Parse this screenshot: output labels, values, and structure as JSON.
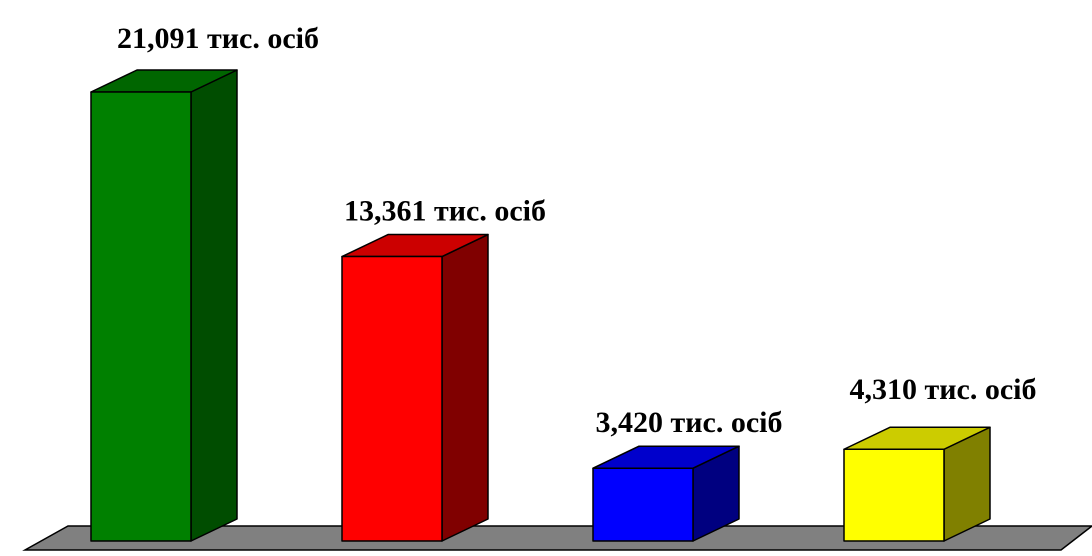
{
  "chart_data": {
    "type": "bar",
    "title": "",
    "xlabel": "",
    "ylabel": "",
    "categories": [
      "",
      "",
      "",
      ""
    ],
    "values": [
      21.091,
      13.361,
      3.42,
      4.31
    ],
    "data_labels": [
      "21,091 тис. осіб",
      "13,361 тис. осіб",
      "3,420 тис. осіб",
      "4,310 тис. осіб"
    ],
    "colors": [
      "#008000",
      "#FF0000",
      "#0000FF",
      "#FFFF00"
    ],
    "side_colors": [
      "#004D00",
      "#800000",
      "#000080",
      "#808000"
    ],
    "top_colors": [
      "#006600",
      "#CC0000",
      "#0000CC",
      "#CCCC00"
    ],
    "floor_color": "#808080",
    "three_d": true,
    "grid": false,
    "legend": "none",
    "ylim": [
      0,
      21.091
    ]
  }
}
